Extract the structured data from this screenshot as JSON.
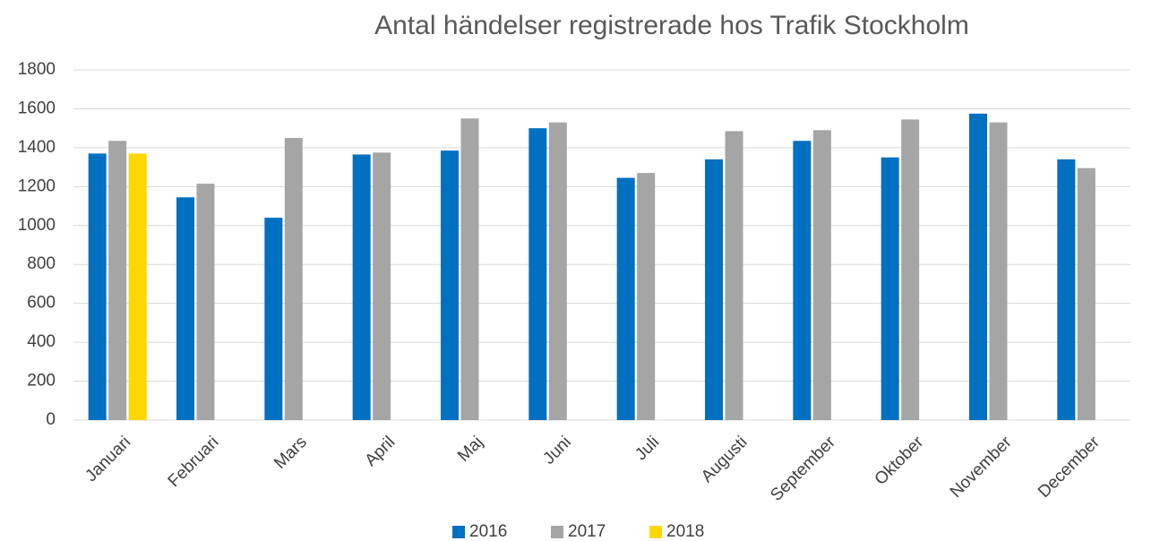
{
  "chart_data": {
    "type": "bar",
    "title": "Antal händelser registrerade hos Trafik Stockholm",
    "categories": [
      "Januari",
      "Februari",
      "Mars",
      "April",
      "Maj",
      "Juni",
      "Juli",
      "Augusti",
      "September",
      "Oktober",
      "November",
      "December"
    ],
    "series": [
      {
        "name": "2016",
        "color": "#0070c0",
        "values": [
          1370,
          1145,
          1040,
          1365,
          1385,
          1500,
          1245,
          1340,
          1435,
          1350,
          1575,
          1340
        ]
      },
      {
        "name": "2017",
        "color": "#a5a5a5",
        "values": [
          1435,
          1215,
          1450,
          1375,
          1550,
          1530,
          1270,
          1485,
          1490,
          1545,
          1530,
          1295
        ]
      },
      {
        "name": "2018",
        "color": "#ffd700",
        "values": [
          1370,
          null,
          null,
          null,
          null,
          null,
          null,
          null,
          null,
          null,
          null,
          null
        ]
      }
    ],
    "ylim": [
      0,
      1800
    ],
    "yticks": [
      0,
      200,
      400,
      600,
      800,
      1000,
      1200,
      1400,
      1600,
      1800
    ],
    "grid": true,
    "legend": "bottom"
  }
}
